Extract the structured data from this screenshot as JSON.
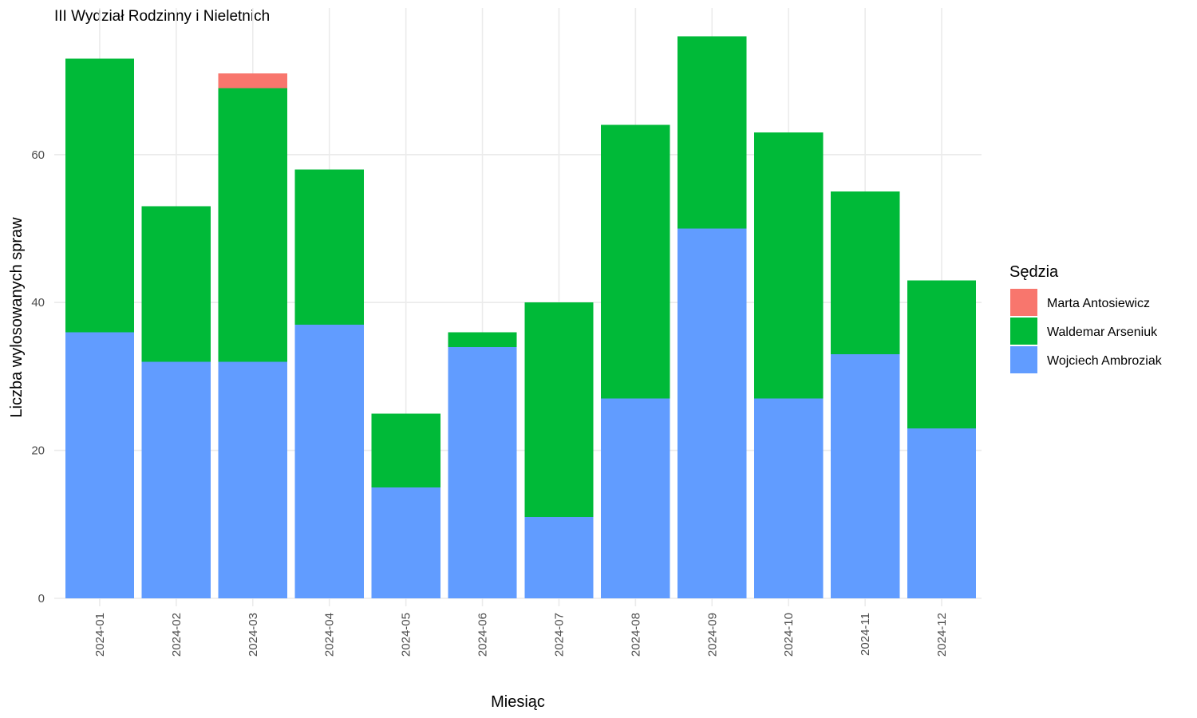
{
  "chart_data": {
    "type": "bar",
    "stacked": true,
    "title": "III Wydział Rodzinny i Nieletnich",
    "xlabel": "Miesiąc",
    "ylabel": "Liczba wylosowanych spraw",
    "categories": [
      "2024-01",
      "2024-02",
      "2024-03",
      "2024-04",
      "2024-05",
      "2024-06",
      "2024-07",
      "2024-08",
      "2024-09",
      "2024-10",
      "2024-11",
      "2024-12"
    ],
    "series": [
      {
        "name": "Wojciech Ambroziak",
        "color": "#619CFF",
        "values": [
          36,
          32,
          32,
          37,
          15,
          34,
          11,
          27,
          50,
          27,
          33,
          23
        ]
      },
      {
        "name": "Waldemar Arseniuk",
        "color": "#00BA38",
        "values": [
          37,
          21,
          37,
          21,
          10,
          2,
          29,
          37,
          26,
          36,
          22,
          20
        ]
      },
      {
        "name": "Marta Antosiewicz",
        "color": "#F8766D",
        "values": [
          0,
          0,
          2,
          0,
          0,
          0,
          0,
          0,
          0,
          0,
          0,
          0
        ]
      }
    ],
    "ylim": [
      0,
      80
    ],
    "y_ticks": [
      0,
      20,
      40,
      60
    ],
    "grid": true,
    "x_tick_rotation": "vertical",
    "legend": {
      "title": "Sędzia",
      "position": "right",
      "entries": [
        {
          "label": "Marta Antosiewicz",
          "color": "#F8766D"
        },
        {
          "label": "Waldemar Arseniuk",
          "color": "#00BA38"
        },
        {
          "label": "Wojciech Ambroziak",
          "color": "#619CFF"
        }
      ]
    }
  }
}
